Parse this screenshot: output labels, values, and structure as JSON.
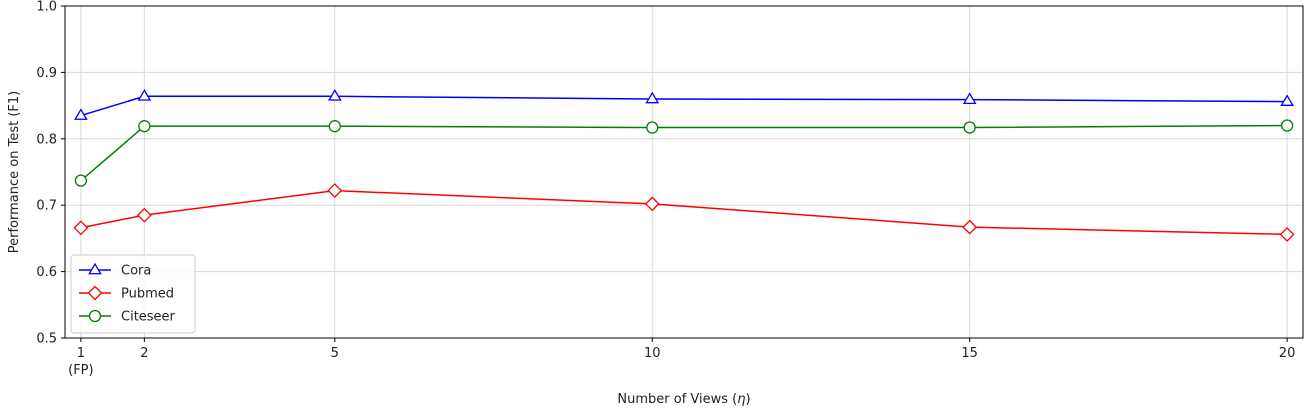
{
  "chart_data": {
    "type": "line",
    "title": "",
    "xlabel": "Number of Views (",
    "xlabel_symbol": "η",
    "xlabel_suffix": ")",
    "ylabel": "Performance on Test (F1)",
    "xlim": [
      0.75,
      20.25
    ],
    "ylim": [
      0.5,
      1.0
    ],
    "x_ticks": [
      1,
      2,
      5,
      10,
      15,
      20
    ],
    "x_tick_sublabels": [
      "(FP)",
      "",
      "",
      "",
      "",
      ""
    ],
    "y_ticks": [
      0.5,
      0.6,
      0.7,
      0.8,
      0.9,
      1.0
    ],
    "grid": true,
    "legend_position": "lower-left",
    "x": [
      1,
      2,
      5,
      10,
      15,
      20
    ],
    "series": [
      {
        "name": "Cora",
        "color": "#0000ff",
        "marker": "triangle",
        "values": [
          0.835,
          0.864,
          0.864,
          0.86,
          0.859,
          0.856
        ]
      },
      {
        "name": "Pubmed",
        "color": "#ff0000",
        "marker": "diamond",
        "values": [
          0.666,
          0.685,
          0.722,
          0.702,
          0.667,
          0.656
        ]
      },
      {
        "name": "Citeseer",
        "color": "#008000",
        "marker": "circle",
        "values": [
          0.737,
          0.819,
          0.819,
          0.817,
          0.817,
          0.82
        ]
      }
    ]
  }
}
